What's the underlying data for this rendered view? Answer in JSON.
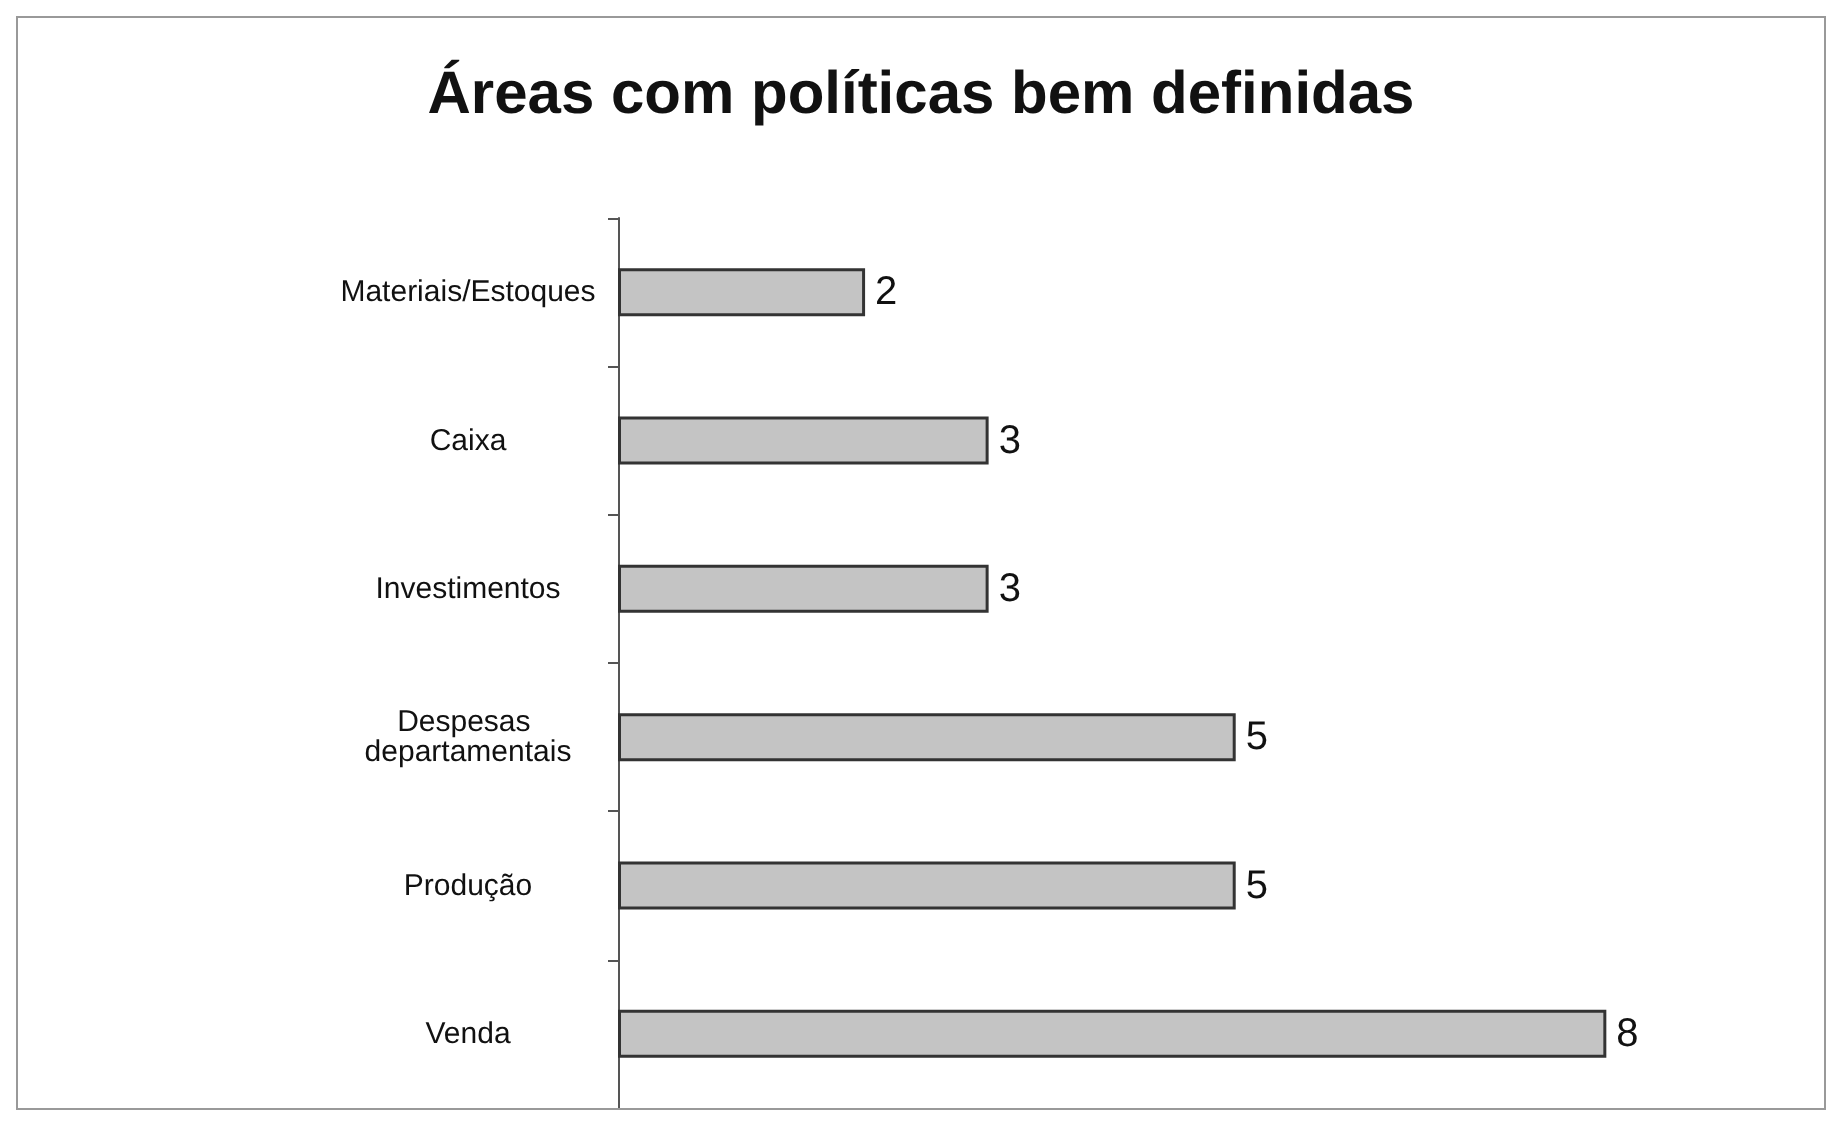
{
  "chart_data": {
    "type": "bar",
    "orientation": "horizontal",
    "title": "Áreas com políticas bem definidas",
    "categories": [
      "Materiais/Estoques",
      "Caixa",
      "Investimentos",
      "Despesas departamentais",
      "Produção",
      "Venda"
    ],
    "values": [
      2,
      3,
      3,
      5,
      5,
      8
    ],
    "color": "#c4c4c4",
    "data_labels": true
  }
}
